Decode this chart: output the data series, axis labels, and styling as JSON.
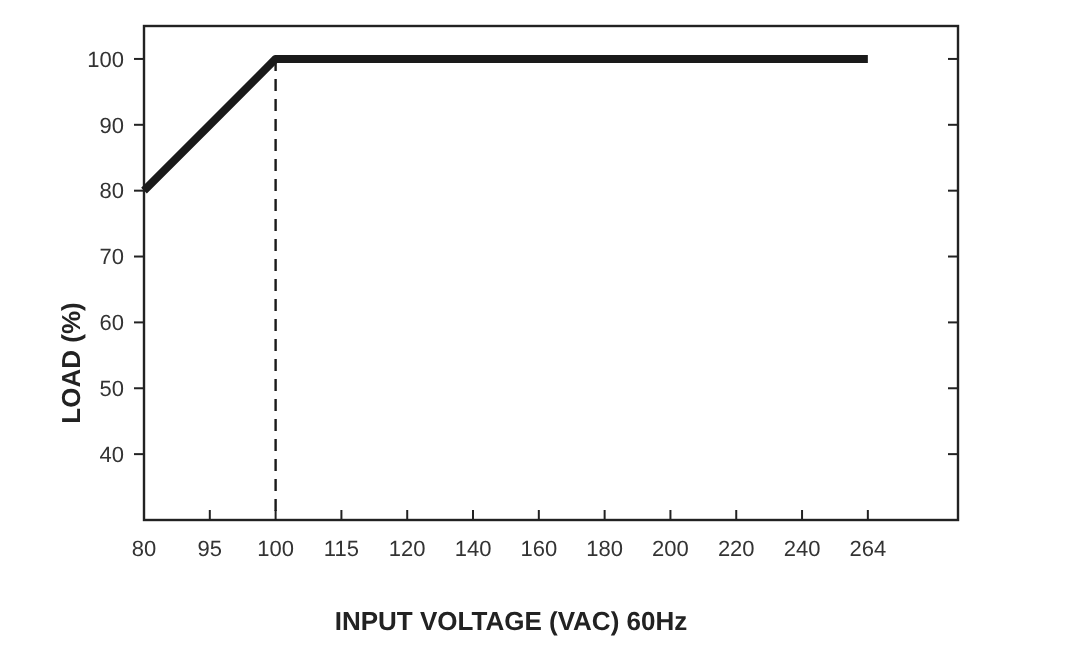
{
  "chart_data": {
    "type": "line",
    "xlabel": "INPUT VOLTAGE (VAC) 60Hz",
    "ylabel": "LOAD (%)",
    "categories": [
      "80",
      "95",
      "100",
      "115",
      "120",
      "140",
      "160",
      "180",
      "200",
      "220",
      "240",
      "264"
    ],
    "series": [
      {
        "color": "#1a1a1a",
        "values": [
          80,
          90,
          100,
          100,
          100,
          100,
          100,
          100,
          100,
          100,
          100,
          100
        ]
      }
    ],
    "ylim": [
      30,
      105
    ],
    "yticks": [
      40,
      50,
      60,
      70,
      80,
      90,
      100
    ],
    "ref_lines": [
      {
        "axis": "x",
        "value": "100",
        "color": "#1a1a1a",
        "line_style": "dashed"
      }
    ],
    "grid": false,
    "marker": "none",
    "line_style": "solid"
  }
}
